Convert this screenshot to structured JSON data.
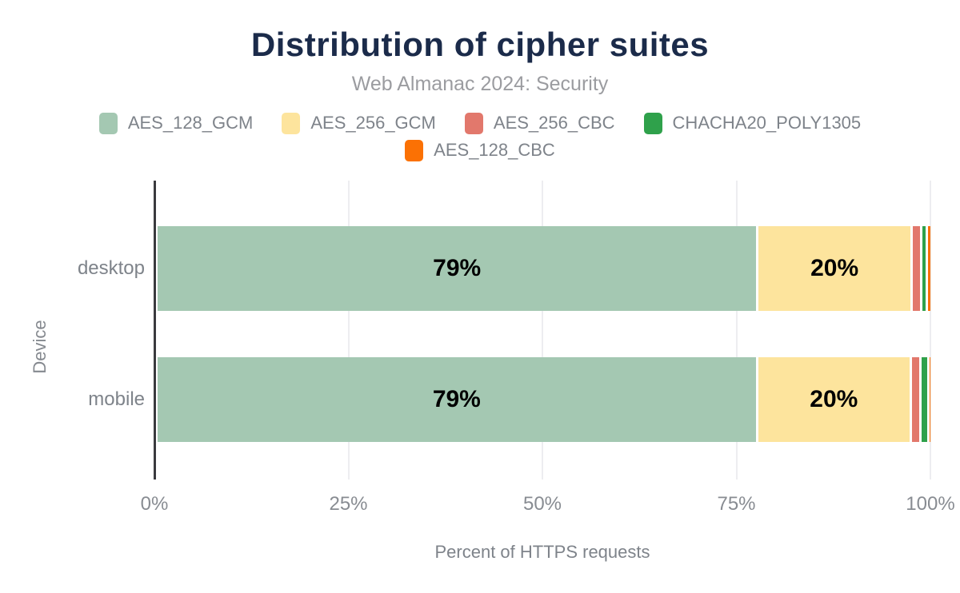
{
  "chart": {
    "title": "Distribution of cipher suites",
    "subtitle": "Web Almanac 2024: Security",
    "x_axis": {
      "label": "Percent of HTTPS requests",
      "ticks": [
        "0%",
        "25%",
        "50%",
        "75%",
        "100%"
      ]
    },
    "y_axis": {
      "label": "Device",
      "categories": [
        "desktop",
        "mobile"
      ]
    }
  },
  "chart_data": {
    "type": "bar",
    "orientation": "horizontal",
    "stacked": true,
    "title": "Distribution of cipher suites",
    "subtitle": "Web Almanac 2024: Security",
    "xlabel": "Percent of HTTPS requests",
    "ylabel": "Device",
    "xlim": [
      0,
      100
    ],
    "grid": "vertical-light",
    "legend_position": "top-center",
    "categories": [
      "desktop",
      "mobile"
    ],
    "series": [
      {
        "name": "AES_128_GCM",
        "color": "#a4c8b2",
        "values": [
          79,
          79
        ],
        "labels": [
          "79%",
          "79%"
        ]
      },
      {
        "name": "AES_256_GCM",
        "color": "#fde49d",
        "values": [
          20,
          20
        ],
        "labels": [
          "20%",
          "20%"
        ]
      },
      {
        "name": "AES_256_CBC",
        "color": "#e2786c",
        "values": [
          1.0,
          1.0
        ],
        "labels": null
      },
      {
        "name": "CHACHA20_POLY1305",
        "color": "#2fa14b",
        "values": [
          0.4,
          0.7
        ],
        "labels": null
      },
      {
        "name": "AES_128_CBC",
        "color": "#fb7104",
        "values": [
          0.3,
          0.1
        ],
        "labels": null
      }
    ],
    "colors": {
      "title_text": "#1b2b4a",
      "subtitle_text": "#9b9ca0",
      "axis_line": "#3a3a3e",
      "gridline": "#ededf0",
      "tick_text": "#888c92",
      "bar_label_text": "#000000"
    }
  }
}
